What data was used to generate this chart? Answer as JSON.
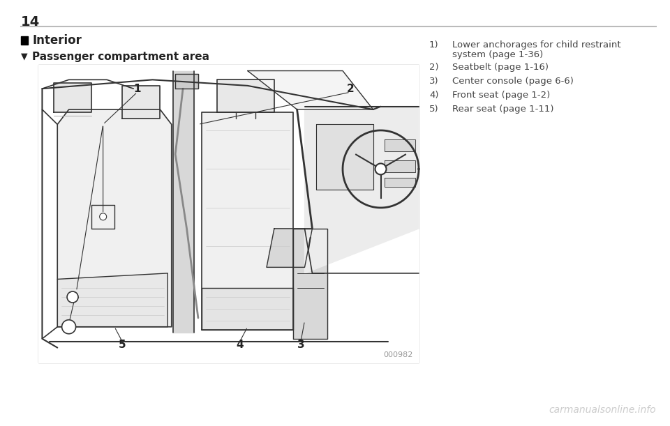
{
  "page_number": "14",
  "header_line_color": "#bbbbbb",
  "background_color": "#ffffff",
  "section_title": "Interior",
  "subsection_symbol": "▼",
  "subsection_title": "Passenger compartment area",
  "list_items": [
    {
      "num": "1)",
      "line1": "Lower anchorages for child restraint",
      "line2": "system (page 1-36)"
    },
    {
      "num": "2)",
      "line1": "Seatbelt (page 1-16)",
      "line2": ""
    },
    {
      "num": "3)",
      "line1": "Center console (page 6-6)",
      "line2": ""
    },
    {
      "num": "4)",
      "line1": "Front seat (page 1-2)",
      "line2": ""
    },
    {
      "num": "5)",
      "line1": "Rear seat (page 1-11)",
      "line2": ""
    }
  ],
  "image_code": "000982",
  "watermark": "carmanualsonline.info",
  "text_color": "#222222",
  "list_text_color": "#444444",
  "light_text_color": "#999999",
  "box_border_color": "#888888",
  "line_color": "#333333",
  "font_size_page": 14,
  "font_size_section": 12,
  "font_size_subsection": 11,
  "font_size_list": 9.5,
  "font_size_watermark": 10
}
